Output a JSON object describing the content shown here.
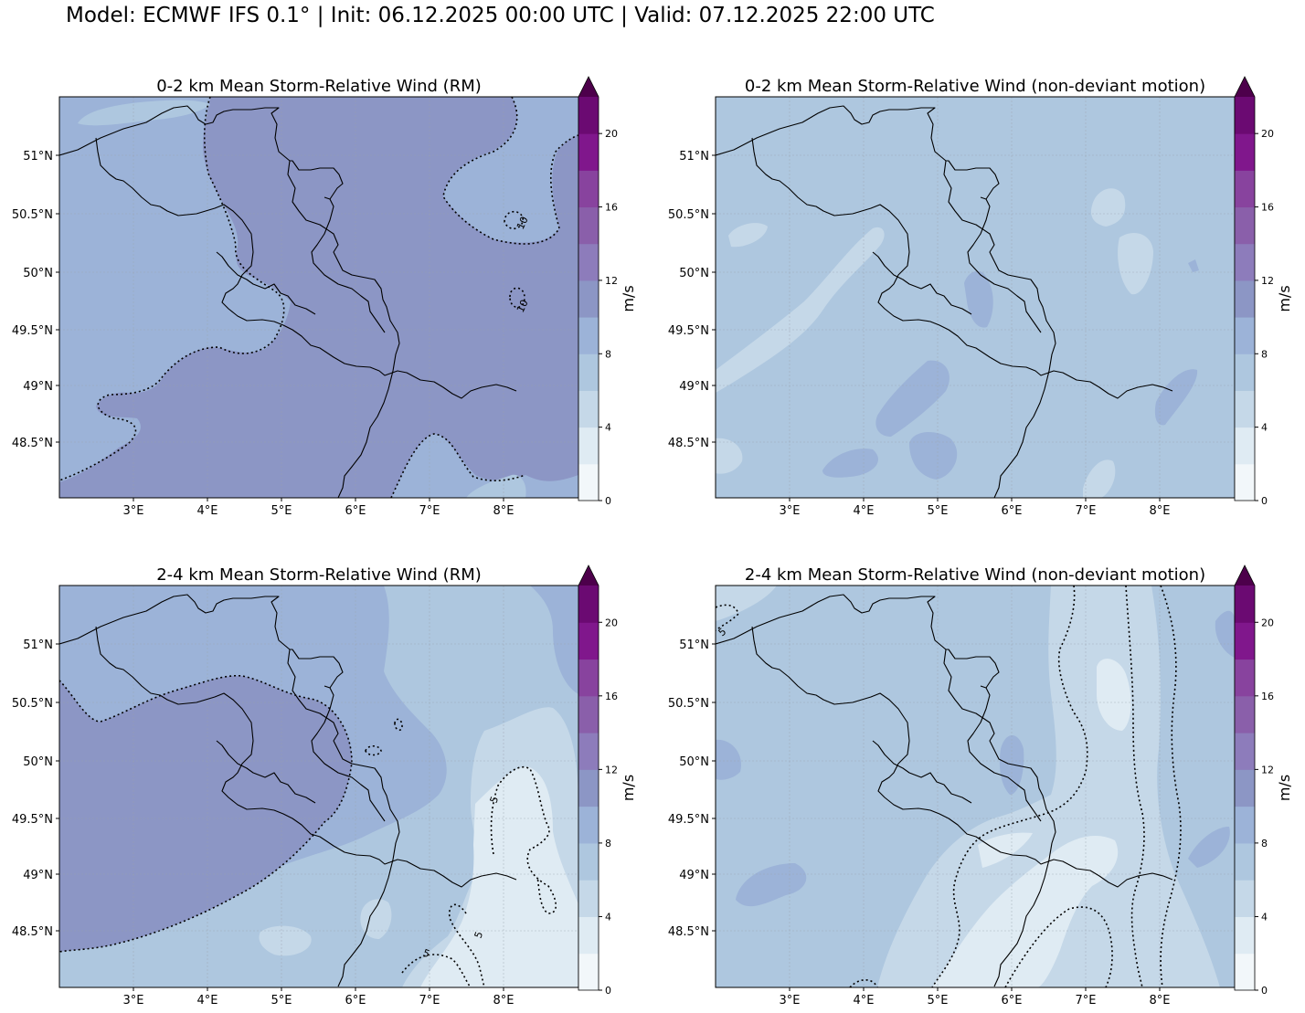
{
  "title": "Model: ECMWF IFS 0.1° | Init: 06.12.2025 00:00 UTC | Valid: 07.12.2025 22:00 UTC",
  "colors": {
    "levels": [
      "#f2f7fa",
      "#dfebf3",
      "#c5d8e8",
      "#aec7df",
      "#9cb3d8",
      "#8c96c5",
      "#8d7cbb",
      "#8a5faa",
      "#88439e",
      "#80178c",
      "#6b0a72",
      "#4d004b"
    ],
    "border": "#000000",
    "grid": "#9aa3ad"
  },
  "chart_data": [
    {
      "panel": "top-left",
      "type": "contourf",
      "title": "0-2 km Mean Storm-Relative Wind (RM)",
      "xlabel_ticks": [
        "3°E",
        "4°E",
        "5°E",
        "6°E",
        "7°E",
        "8°E"
      ],
      "ylabel_ticks": [
        "51°N",
        "50.5°N",
        "50°N",
        "49.5°N",
        "49°N",
        "48.5°N"
      ],
      "colorbar": {
        "label": "m/s",
        "ticks": [
          "0",
          "4",
          "8",
          "12",
          "16",
          "20"
        ],
        "range": [
          0,
          22
        ],
        "extend": "max"
      },
      "contour_labels": [
        "10",
        "10"
      ],
      "background_level": 5,
      "contour_level_value": 10
    },
    {
      "panel": "top-right",
      "type": "contourf",
      "title": "0-2 km Mean Storm-Relative Wind (non-deviant motion)",
      "xlabel_ticks": [
        "3°E",
        "4°E",
        "5°E",
        "6°E",
        "7°E",
        "8°E"
      ],
      "ylabel_ticks": [
        "51°N",
        "50.5°N",
        "50°N",
        "49.5°N",
        "49°N",
        "48.5°N"
      ],
      "colorbar": {
        "label": "m/s",
        "ticks": [
          "0",
          "4",
          "8",
          "12",
          "16",
          "20"
        ],
        "range": [
          0,
          22
        ],
        "extend": "max"
      },
      "contour_labels": [],
      "background_level": 3
    },
    {
      "panel": "bottom-left",
      "type": "contourf",
      "title": "2-4 km Mean Storm-Relative Wind (RM)",
      "xlabel_ticks": [
        "3°E",
        "4°E",
        "5°E",
        "6°E",
        "7°E",
        "8°E"
      ],
      "ylabel_ticks": [
        "51°N",
        "50.5°N",
        "50°N",
        "49.5°N",
        "49°N",
        "48.5°N"
      ],
      "colorbar": {
        "label": "m/s",
        "ticks": [
          "0",
          "4",
          "8",
          "12",
          "16",
          "20"
        ],
        "range": [
          0,
          22
        ],
        "extend": "max"
      },
      "contour_labels": [
        "5",
        "5",
        "5"
      ],
      "background_level": 4,
      "contour_level_value": 5
    },
    {
      "panel": "bottom-right",
      "type": "contourf",
      "title": "2-4 km Mean Storm-Relative Wind (non-deviant motion)",
      "xlabel_ticks": [
        "3°E",
        "4°E",
        "5°E",
        "6°E",
        "7°E",
        "8°E"
      ],
      "ylabel_ticks": [
        "51°N",
        "50.5°N",
        "50°N",
        "49.5°N",
        "49°N",
        "48.5°N"
      ],
      "colorbar": {
        "label": "m/s",
        "ticks": [
          "0",
          "4",
          "8",
          "12",
          "16",
          "20"
        ],
        "range": [
          0,
          22
        ],
        "extend": "max"
      },
      "contour_labels": [
        "5"
      ],
      "background_level": 3,
      "contour_level_value": 5
    }
  ]
}
